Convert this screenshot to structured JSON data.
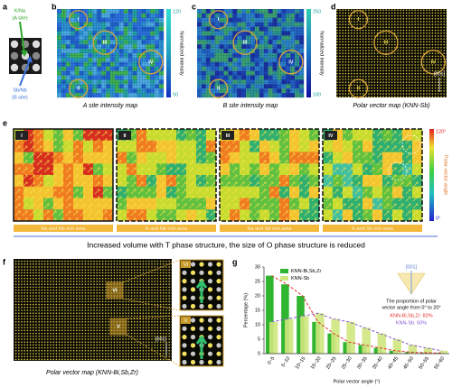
{
  "panel_labels": [
    "a",
    "b",
    "c",
    "d",
    "e",
    "f",
    "g"
  ],
  "a": {
    "top_label": "K/Na",
    "top_sub": "(A site)",
    "bottom_label": "Sb/Nb",
    "bottom_sub": "(B site)"
  },
  "b": {
    "regions": [
      "I",
      "III",
      "IV",
      "II"
    ],
    "colorbar": {
      "max": 120,
      "min": 50,
      "label": "Normalized intensity"
    },
    "caption": "A site intensity map"
  },
  "c": {
    "regions": [
      "I",
      "III",
      "IV",
      "II"
    ],
    "colorbar": {
      "max": 250,
      "min": 180,
      "label": "Normalized intensity"
    },
    "caption": "B site intensity map"
  },
  "d": {
    "regions": [
      "I",
      "III",
      "IV",
      "II"
    ],
    "axis": "[001]",
    "caption": "Polar vector map (KNN-Sb)"
  },
  "e": {
    "panels": [
      {
        "label": "I",
        "caption": "Na and Nb rich area"
      },
      {
        "label": "II",
        "caption": "K and Nb rich area"
      },
      {
        "label": "III",
        "caption": "Na and Sb rich area"
      },
      {
        "label": "IV",
        "caption": "K and Sb rich area"
      }
    ],
    "colorbar": {
      "max": "120°",
      "min": "0°",
      "label": "Polar vector angle"
    },
    "summary": "Increased volume with T phase structure, the size of O phase structure is reduced"
  },
  "f": {
    "regions": [
      "VI",
      "V"
    ],
    "axis": "[001]",
    "caption": "Polar vector map (KNN-Bi,Sb,Zr)"
  },
  "g": {
    "chart_data": {
      "type": "bar",
      "categories": [
        "0~5",
        "5~10",
        "10~15",
        "15~20",
        "20~25",
        "25~30",
        "30~35",
        "35~40",
        "40~45",
        "45~50",
        "50~55",
        "55~60"
      ],
      "series": [
        {
          "name": "KNN-Bi,Sb,Zr",
          "color": "#2fb52f",
          "trend_color": "#e0302a",
          "values": [
            27,
            24,
            20,
            11,
            7,
            4,
            3,
            2,
            1,
            0.5,
            0.3,
            0.2
          ]
        },
        {
          "name": "KNN-Sb",
          "color": "#cfe77e",
          "trend_color": "#8a5ad6",
          "values": [
            11,
            12,
            13,
            14,
            12,
            11,
            9,
            7,
            5,
            3,
            2,
            1
          ]
        }
      ],
      "ylim": [
        0,
        30
      ],
      "yticks": [
        0,
        5,
        10,
        15,
        20,
        25,
        30
      ],
      "ylabel": "Percentage (%)",
      "xlabel": "Polar vector angle (°)",
      "inset_axis": "[001]",
      "annotation": [
        "The proportion of polar",
        "vector angle from 0° to 20°"
      ],
      "annotation_values": [
        "KNN-Bi,Sb,Zr: 82%",
        "KNN-Sb: 50%"
      ]
    }
  }
}
